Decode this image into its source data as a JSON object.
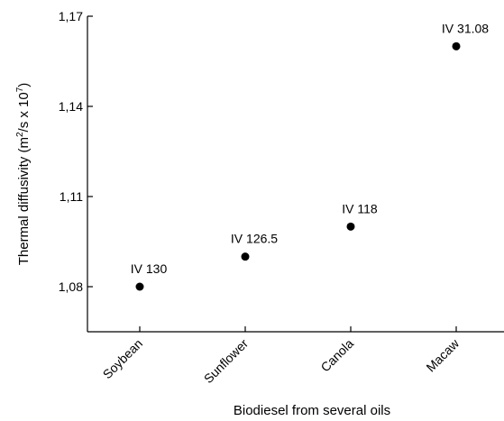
{
  "chart_data": {
    "type": "scatter",
    "categories": [
      "Soybean",
      "Sunflower",
      "Canola",
      "Macaw"
    ],
    "values": [
      1.08,
      1.09,
      1.1,
      1.16
    ],
    "annotations": [
      "IV 130",
      "IV 126.5",
      "IV 118",
      "IV 31.08"
    ],
    "yticks": [
      "1,08",
      "1,11",
      "1,14",
      "1,17"
    ],
    "ytick_values": [
      1.08,
      1.11,
      1.14,
      1.17
    ],
    "ylim": [
      1.065,
      1.17
    ],
    "xlabel": "Biodiesel from several oils",
    "ylabel": {
      "part1": "Thermal diffusivity (m",
      "sup1": "2",
      "part2": "/s x 10",
      "sup2": "7",
      "part3": ")"
    },
    "marker_color": "#000000",
    "grid": false
  }
}
